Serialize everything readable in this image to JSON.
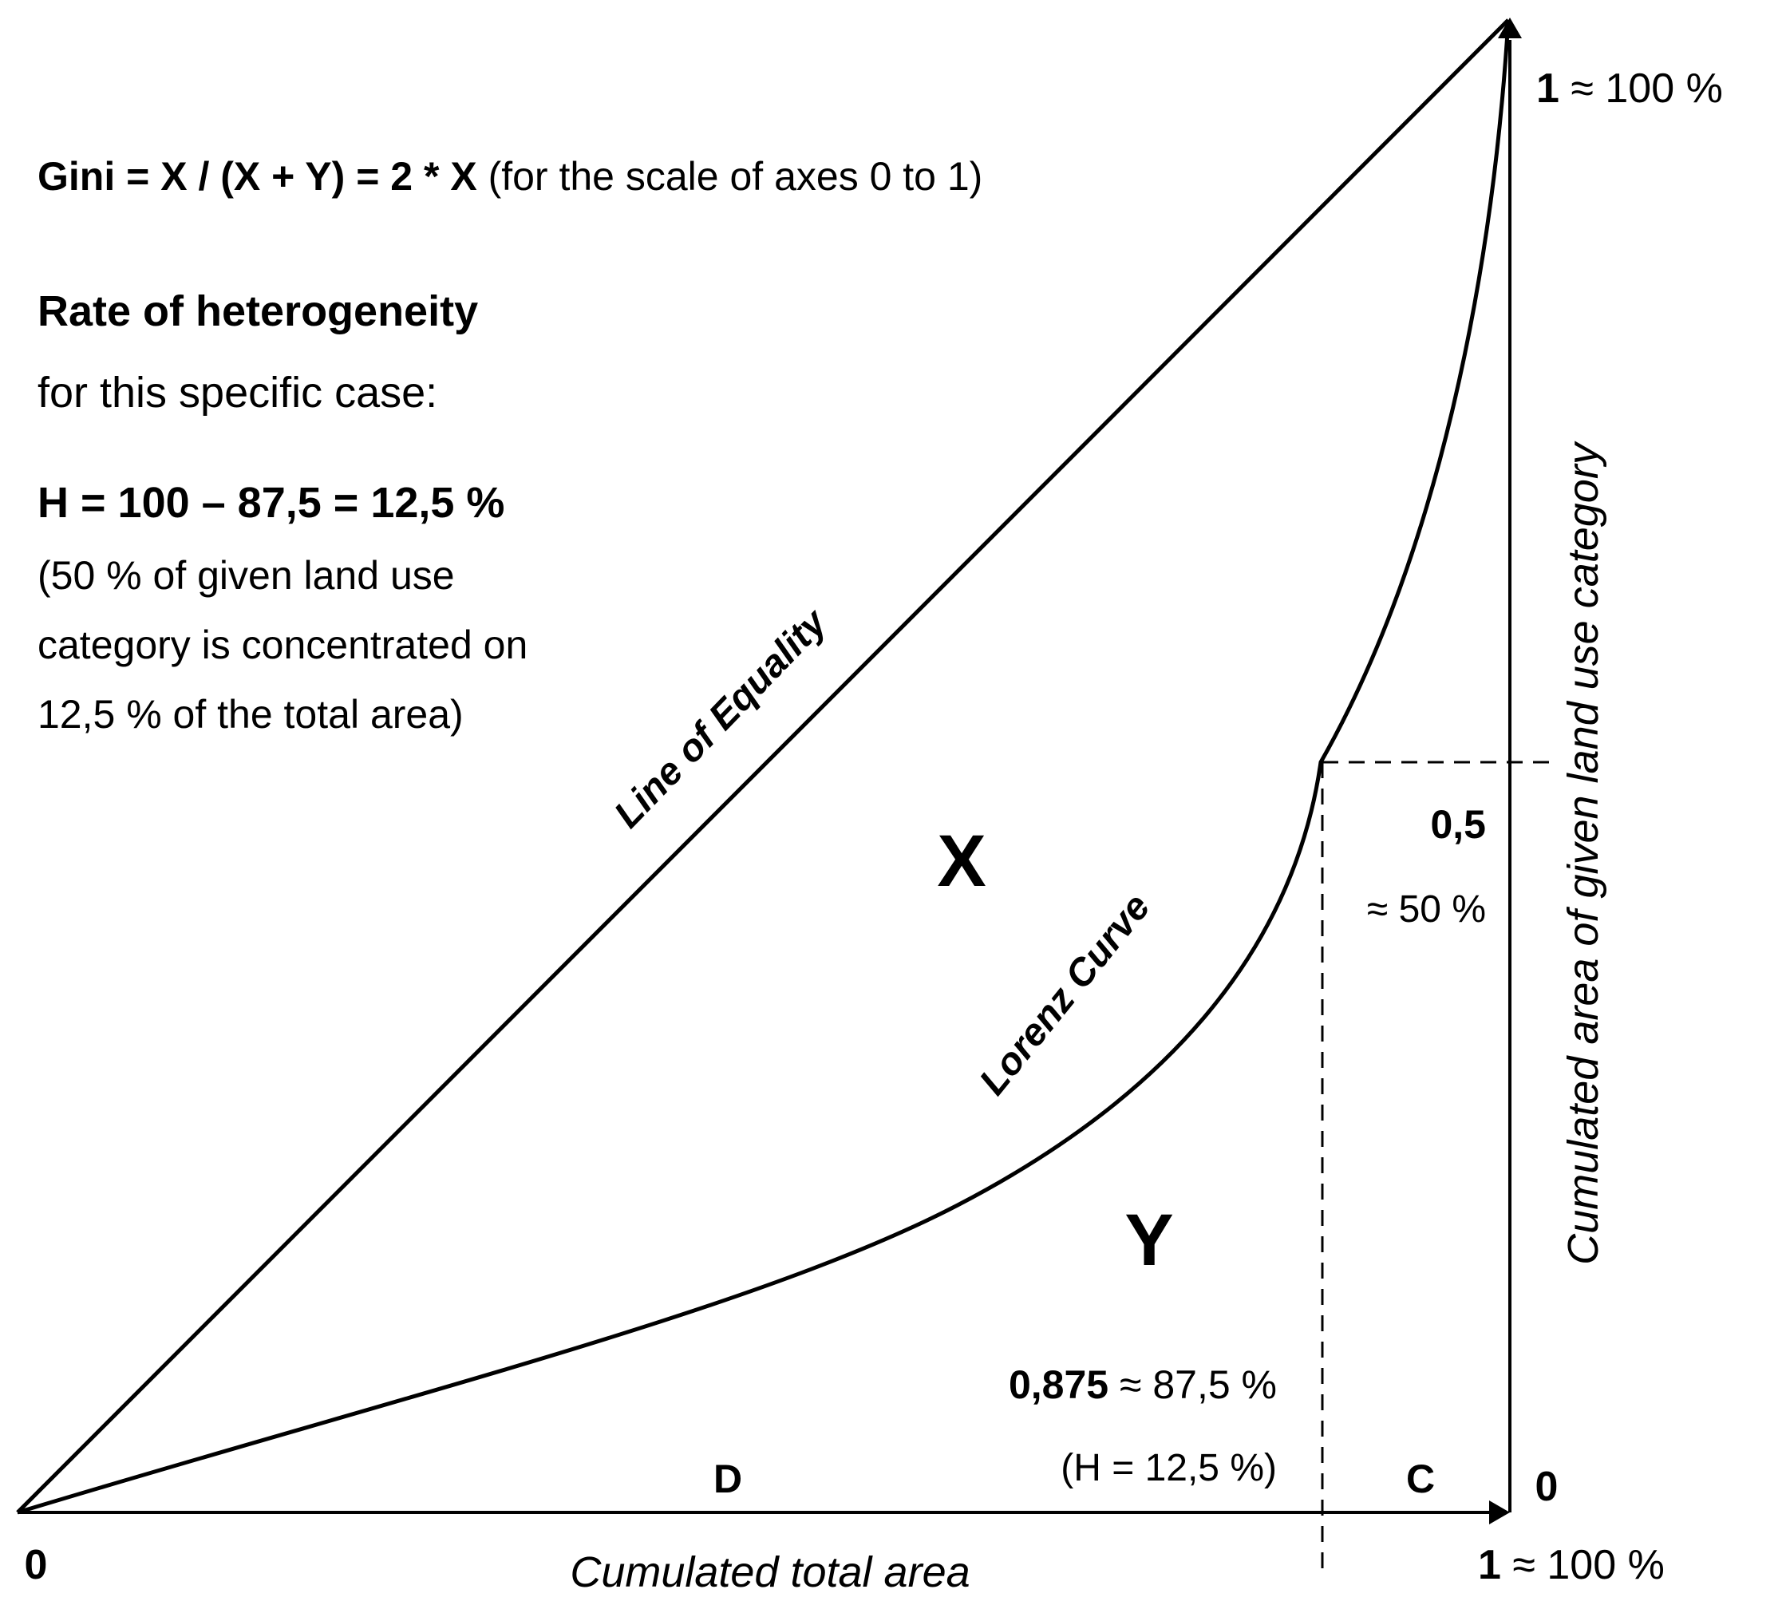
{
  "formula": {
    "gini_bold": "Gini = X / (X + Y) = 2 * X",
    "gini_note": " (for the scale of axes 0 to 1)"
  },
  "heterogeneity": {
    "title": "Rate of heterogeneity",
    "subtitle": "for this specific case:",
    "equation": "H = 100 – 87,5 = 12,5 %",
    "explanation": [
      "(50 % of given land use",
      "category is concentrated on",
      "12,5 % of the total area)"
    ]
  },
  "curves": {
    "equality_label": "Line of Equality",
    "lorenz_label": "Lorenz Curve"
  },
  "regions": {
    "x": "X",
    "y": "Y",
    "d": "D",
    "c": "C"
  },
  "axes": {
    "x_label": "Cumulated total area",
    "y_label": "Cumulated area of given land use category",
    "origin": "0",
    "x_max_bold": "1",
    "x_max_note": " ≈ 100 %",
    "y_max_bold": "1",
    "y_max_note": " ≈ 100 %",
    "y_zero": "0"
  },
  "marker": {
    "y_value": "0,5",
    "y_pct": "≈ 50 %",
    "x_value_bold": "0,875",
    "x_value_note": " ≈ 87,5 %",
    "h_note": "(H = 12,5 %)"
  },
  "colors": {
    "ink": "#000000",
    "background": "#ffffff"
  }
}
